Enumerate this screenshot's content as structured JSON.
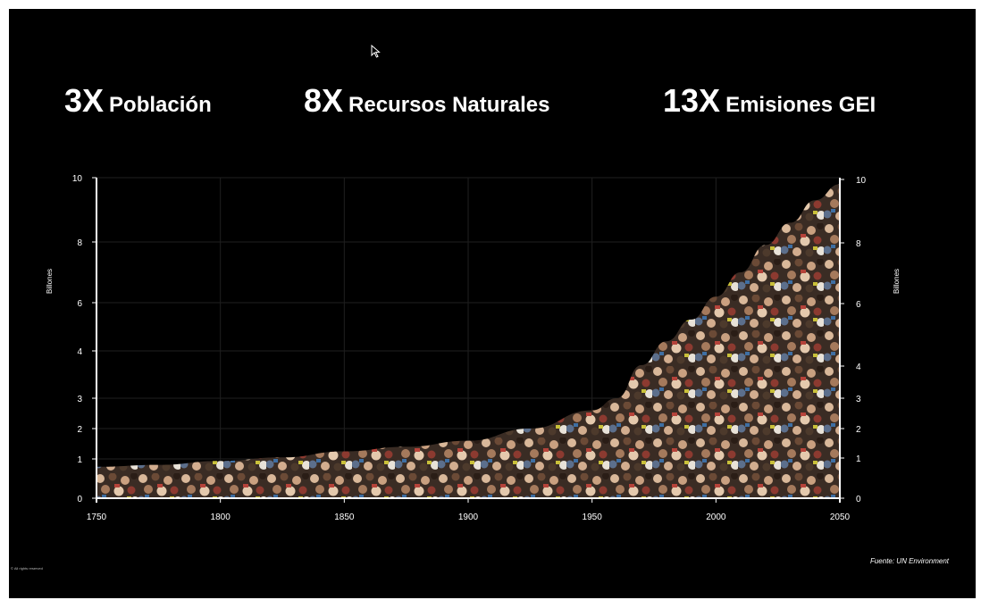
{
  "headlines": [
    {
      "multiplier": "3X",
      "label": "Población"
    },
    {
      "multiplier": "8X",
      "label": "Recursos Naturales"
    },
    {
      "multiplier": "13X",
      "label": "Emisiones GEI"
    }
  ],
  "source": "Fuente: UN Environment",
  "copyright": "© All rights reserved",
  "colors": {
    "background": "#000000",
    "text": "#ffffff",
    "grid": "#1f1f1f"
  },
  "chart_data": {
    "type": "area",
    "xlabel": "",
    "ylabel": "Billones",
    "ylabel_right": "Billones",
    "xlim": [
      1750,
      2050
    ],
    "ylim": [
      0,
      10
    ],
    "x_ticks": [
      1750,
      1800,
      1850,
      1900,
      1950,
      2000,
      2050
    ],
    "y_ticks_left": [
      0,
      1,
      2,
      3,
      4,
      6,
      8,
      10
    ],
    "y_ticks_right": [
      0,
      1,
      2,
      3,
      4,
      6,
      8,
      10
    ],
    "grid": true,
    "fill": "crowd-photo",
    "series": [
      {
        "name": "",
        "x": [
          1750,
          1775,
          1800,
          1825,
          1850,
          1875,
          1900,
          1925,
          1950,
          1960,
          1970,
          1980,
          1990,
          2000,
          2010,
          2020,
          2030,
          2040,
          2050
        ],
        "values": [
          0.8,
          0.85,
          0.95,
          1.05,
          1.25,
          1.4,
          1.6,
          2.0,
          2.6,
          3.0,
          3.7,
          4.4,
          5.3,
          6.2,
          7.0,
          7.9,
          8.6,
          9.3,
          9.8
        ]
      }
    ]
  }
}
